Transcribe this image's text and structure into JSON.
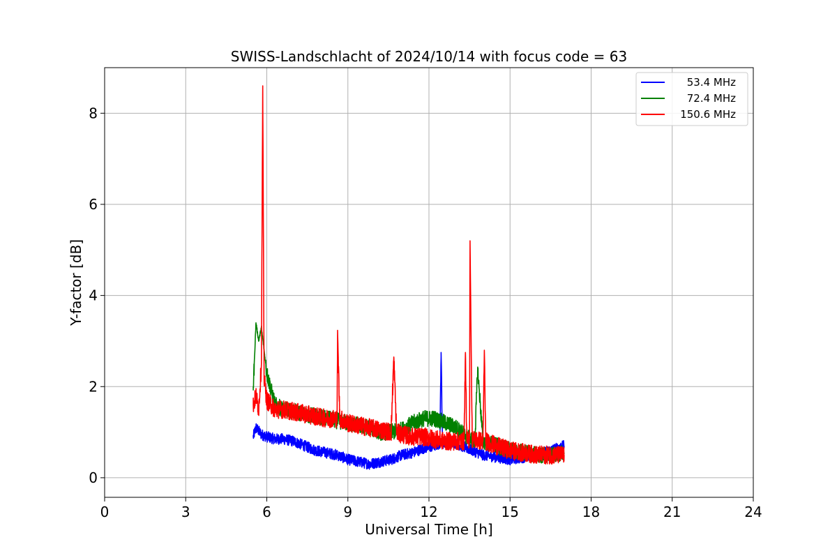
{
  "chart_data": {
    "type": "line",
    "title": "SWISS-Landschlacht of 2024/10/14 with focus code = 63",
    "xlabel": "Universal Time [h]",
    "ylabel": "Y-factor [dB]",
    "xlim": [
      0,
      24
    ],
    "ylim": [
      -0.43,
      9.0
    ],
    "xticks": [
      0,
      3,
      6,
      9,
      12,
      15,
      18,
      21,
      24
    ],
    "yticks": [
      0,
      2,
      4,
      6,
      8
    ],
    "grid": true,
    "legend_position": "top-right",
    "series": [
      {
        "name": "53.4 MHz",
        "color": "#0000ff",
        "x": [
          5.5,
          5.6,
          5.8,
          6.0,
          6.3,
          6.6,
          7.0,
          7.4,
          7.8,
          8.2,
          8.6,
          9.0,
          9.4,
          9.8,
          10.2,
          10.6,
          11.0,
          11.4,
          11.8,
          12.2,
          12.4,
          12.45,
          12.5,
          12.8,
          13.2,
          13.6,
          14.0,
          14.5,
          15.0,
          15.5,
          16.0,
          16.5,
          17.0
        ],
        "y": [
          0.9,
          1.1,
          0.95,
          0.9,
          0.85,
          0.85,
          0.8,
          0.7,
          0.6,
          0.55,
          0.5,
          0.4,
          0.35,
          0.3,
          0.35,
          0.4,
          0.5,
          0.55,
          0.65,
          0.7,
          0.75,
          2.75,
          0.75,
          0.8,
          0.7,
          0.6,
          0.5,
          0.45,
          0.4,
          0.45,
          0.5,
          0.6,
          0.7
        ]
      },
      {
        "name": "72.4 MHz",
        "color": "#008000",
        "x": [
          5.5,
          5.6,
          5.7,
          5.8,
          5.9,
          6.0,
          6.3,
          6.6,
          7.0,
          7.4,
          7.8,
          8.2,
          8.6,
          9.0,
          9.4,
          9.8,
          10.2,
          10.6,
          11.0,
          11.4,
          11.8,
          12.2,
          12.6,
          13.0,
          13.4,
          13.7,
          13.8,
          14.0,
          14.5,
          15.0,
          15.5,
          16.0,
          16.5,
          17.0
        ],
        "y": [
          2.0,
          3.4,
          3.0,
          3.3,
          2.8,
          2.3,
          1.6,
          1.5,
          1.45,
          1.4,
          1.35,
          1.3,
          1.25,
          1.2,
          1.15,
          1.1,
          1.0,
          1.0,
          1.05,
          1.2,
          1.3,
          1.3,
          1.2,
          1.1,
          0.9,
          0.8,
          2.4,
          0.8,
          0.7,
          0.6,
          0.55,
          0.5,
          0.5,
          0.55
        ]
      },
      {
        "name": "150.6 MHz",
        "color": "#ff0000",
        "x": [
          5.5,
          5.6,
          5.7,
          5.8,
          5.85,
          5.9,
          6.0,
          6.3,
          6.6,
          7.0,
          7.4,
          7.8,
          8.2,
          8.6,
          8.62,
          8.7,
          9.0,
          9.4,
          9.8,
          10.2,
          10.6,
          10.7,
          10.8,
          11.0,
          11.4,
          11.8,
          12.2,
          12.6,
          13.0,
          13.3,
          13.35,
          13.4,
          13.5,
          13.52,
          13.6,
          14.0,
          14.05,
          14.1,
          14.5,
          15.0,
          15.5,
          16.0,
          16.5,
          17.0
        ],
        "y": [
          1.6,
          1.8,
          1.5,
          2.5,
          8.6,
          2.2,
          1.7,
          1.5,
          1.5,
          1.45,
          1.4,
          1.35,
          1.3,
          1.3,
          3.2,
          1.3,
          1.2,
          1.15,
          1.1,
          1.05,
          1.0,
          2.65,
          1.0,
          0.95,
          0.9,
          0.9,
          0.85,
          0.8,
          0.8,
          0.8,
          2.75,
          0.8,
          0.85,
          5.2,
          0.85,
          0.8,
          2.8,
          0.8,
          0.7,
          0.6,
          0.55,
          0.5,
          0.5,
          0.5
        ]
      }
    ]
  }
}
